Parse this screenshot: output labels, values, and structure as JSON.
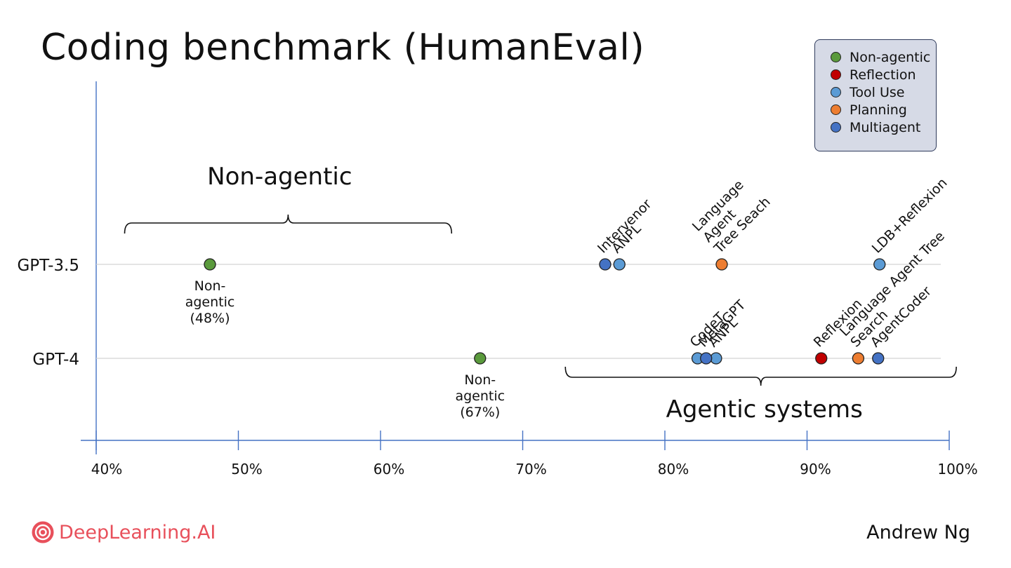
{
  "title": "Coding benchmark (HumanEval)",
  "footer": {
    "brand": "DeepLearning.AI",
    "author": "Andrew Ng",
    "brand_color": "#e8505b",
    "logo_icon": "deeplearning-ai-logo-icon"
  },
  "legend": {
    "placement": "top-right",
    "items": [
      {
        "label": "Non-agentic",
        "color": "#5a9a3c"
      },
      {
        "label": "Reflection",
        "color": "#c00000"
      },
      {
        "label": "Tool Use",
        "color": "#5b9bd5"
      },
      {
        "label": "Planning",
        "color": "#ed7d31"
      },
      {
        "label": "Multiagent",
        "color": "#4472c4"
      }
    ]
  },
  "chart_data": {
    "type": "scatter",
    "title": "Coding benchmark (HumanEval)",
    "xlabel": "",
    "ylabel": "",
    "x_unit": "percent",
    "xlim": [
      40,
      100
    ],
    "x_ticks": [
      "40%",
      "50%",
      "60%",
      "70%",
      "80%",
      "90%",
      "100%"
    ],
    "x_tick_values": [
      40,
      50,
      60,
      70,
      80,
      90,
      100
    ],
    "categories": [
      "GPT-3.5",
      "GPT-4"
    ],
    "grid": "horizontal guide line per model row",
    "legend_placement": "top-right",
    "series": [
      {
        "name": "Non-agentic",
        "color": "#5a9a3c",
        "points": [
          {
            "model": "GPT-3.5",
            "x": 48,
            "label_lines": [
              "Non-",
              "agentic",
              "(48%)"
            ]
          },
          {
            "model": "GPT-4",
            "x": 67,
            "label_lines": [
              "Non-",
              "agentic",
              "(67%)"
            ]
          }
        ]
      },
      {
        "name": "Reflection",
        "color": "#c00000",
        "points": [
          {
            "model": "GPT-4",
            "x": 91,
            "label": "Reflexion"
          }
        ]
      },
      {
        "name": "Tool Use",
        "color": "#5b9bd5",
        "points": [
          {
            "model": "GPT-3.5",
            "x": 76.8,
            "label": "ANPL"
          },
          {
            "model": "GPT-3.5",
            "x": 95.1,
            "label": "LDB+Reflexion"
          },
          {
            "model": "GPT-4",
            "x": 82.3,
            "label": "CodeT"
          },
          {
            "model": "GPT-4",
            "x": 83.6,
            "label": "ANPL"
          }
        ]
      },
      {
        "name": "Planning",
        "color": "#ed7d31",
        "points": [
          {
            "model": "GPT-3.5",
            "x": 84,
            "label_lines": [
              "Language",
              "Agent",
              "Tree Seach"
            ]
          },
          {
            "model": "GPT-4",
            "x": 93.6,
            "label_lines": [
              "Language Agent Tree",
              "Search"
            ]
          }
        ]
      },
      {
        "name": "Multiagent",
        "color": "#4472c4",
        "points": [
          {
            "model": "GPT-3.5",
            "x": 75.8,
            "label": "Intervenor"
          },
          {
            "model": "GPT-4",
            "x": 82.9,
            "label": "MetaGPT"
          },
          {
            "model": "GPT-4",
            "x": 95,
            "label": "AgentCoder"
          }
        ]
      }
    ],
    "annotations": [
      {
        "text": "Non-agentic",
        "bracket_from": 42,
        "bracket_to": 65,
        "position": "above GPT-3.5 row"
      },
      {
        "text": "Agentic systems",
        "bracket_from": 73,
        "bracket_to": 100.5,
        "position": "below GPT-4 row"
      }
    ]
  }
}
